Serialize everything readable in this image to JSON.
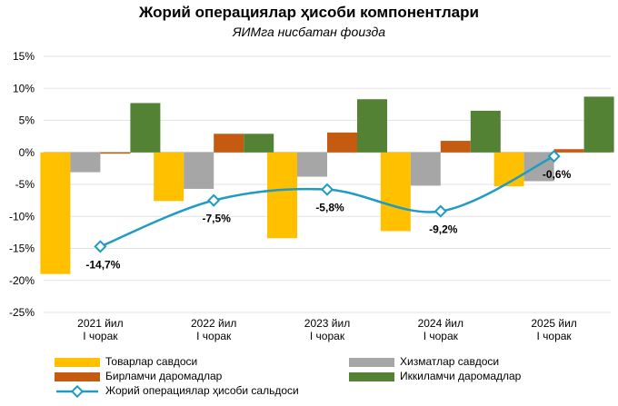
{
  "chart_data": {
    "type": "bar",
    "title": "Жорий операциялар ҳисоби компонентлари",
    "subtitle": "ЯИМга нисбатан фоизда",
    "categories": [
      [
        "2021 йил",
        "I чорак"
      ],
      [
        "2022 йил",
        "I чорак"
      ],
      [
        "2023 йил",
        "I чорак"
      ],
      [
        "2024 йил",
        "I чорак"
      ],
      [
        "2025 йил",
        "I чорак"
      ]
    ],
    "series": [
      {
        "name": "Товарлар савдоси",
        "kind": "bar",
        "color": "#FFC000",
        "values": [
          -19.0,
          -7.6,
          -13.4,
          -12.3,
          -5.3
        ]
      },
      {
        "name": "Хизматлар савдоси",
        "kind": "bar",
        "color": "#A6A6A6",
        "values": [
          -3.1,
          -5.7,
          -3.8,
          -5.2,
          -4.5
        ]
      },
      {
        "name": "Бирламчи даромадлар",
        "kind": "bar",
        "color": "#C55A11",
        "values": [
          -0.2,
          2.9,
          3.1,
          1.8,
          0.5
        ]
      },
      {
        "name": "Иккиламчи даромадлар",
        "kind": "bar",
        "color": "#548235",
        "values": [
          7.7,
          2.9,
          8.3,
          6.5,
          8.7
        ]
      },
      {
        "name": "Жорий операциялар ҳисоби сальдоси",
        "kind": "line",
        "color": "#1F9BC4",
        "values": [
          -14.7,
          -7.5,
          -5.8,
          -9.2,
          -0.6
        ]
      }
    ],
    "line_labels": [
      "-14,7%",
      "-7,5%",
      "-5,8%",
      "-9,2%",
      "-0,6%"
    ],
    "ylim": [
      -25,
      15
    ],
    "yticks": [
      15,
      10,
      5,
      0,
      -5,
      -10,
      -15,
      -20,
      -25
    ],
    "ytick_labels": [
      "15%",
      "10%",
      "5%",
      "0%",
      "-5%",
      "-10%",
      "-15%",
      "-20%",
      "-25%"
    ],
    "grid": true,
    "legend_position": "bottom"
  }
}
